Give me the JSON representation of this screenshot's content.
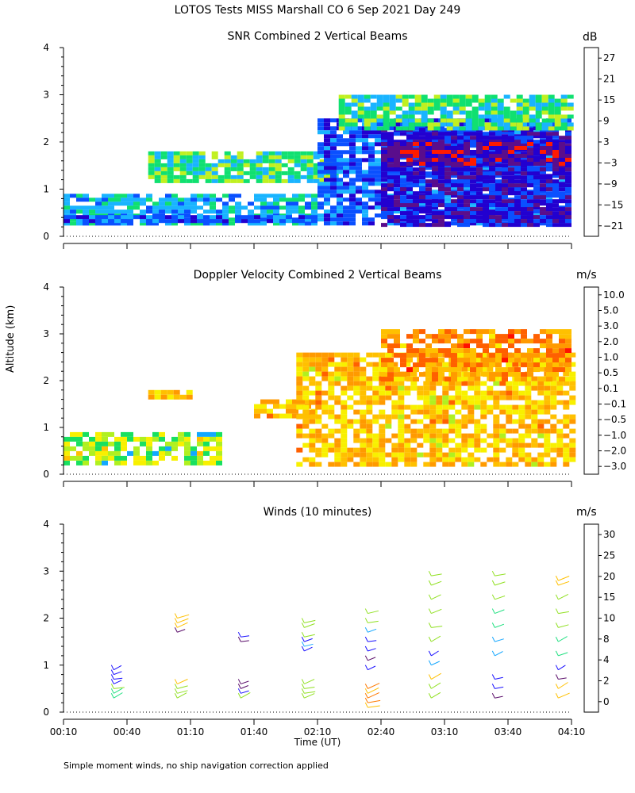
{
  "figure": {
    "title": "LOTOS Tests MISS Marshall CO    6 Sep 2021 Day 249",
    "ylabel": "Altitude (km)",
    "xlabel": "Time (UT)",
    "footnote": "Simple moment winds, no ship navigation correction applied",
    "x_ticks": [
      "00:10",
      "00:40",
      "01:10",
      "01:40",
      "02:10",
      "02:40",
      "03:10",
      "03:40",
      "04:10"
    ],
    "y_ticks": [
      "0",
      "1",
      "2",
      "3",
      "4"
    ]
  },
  "chart_data": [
    {
      "type": "heatmap",
      "title": "SNR Combined 2 Vertical Beams",
      "unit": "dB",
      "xlim": [
        "00:10",
        "04:10"
      ],
      "ylim": [
        0,
        4
      ],
      "colorbar": {
        "labels": [
          "27",
          "21",
          "15",
          "9",
          "3",
          "−3",
          "−9",
          "−15",
          "−21"
        ],
        "colors": [
          "#ffd700",
          "#ff9000",
          "#ff1a00",
          "#5a0d8c",
          "#2200d0",
          "#0a50ff",
          "#19b4ff",
          "#10e070",
          "#c0f020"
        ]
      },
      "regions": [
        {
          "t_start": "00:10",
          "t_end": "02:10",
          "alt_min": 0.25,
          "alt_max": 0.9,
          "snr_db": -12
        },
        {
          "t_start": "00:10",
          "t_end": "02:10",
          "alt_min": 0.3,
          "alt_max": 0.45,
          "snr_db": -6
        },
        {
          "t_start": "00:50",
          "t_end": "02:20",
          "alt_min": 1.2,
          "alt_max": 1.8,
          "snr_db": -18
        },
        {
          "t_start": "02:10",
          "t_end": "04:10",
          "alt_min": 0.25,
          "alt_max": 2.5,
          "snr_db": -6
        },
        {
          "t_start": "02:40",
          "t_end": "04:10",
          "alt_min": 0.25,
          "alt_max": 2.3,
          "snr_db": 0
        },
        {
          "t_start": "02:40",
          "t_end": "04:10",
          "alt_min": 1.5,
          "alt_max": 2.0,
          "snr_db": 8
        },
        {
          "t_start": "02:20",
          "t_end": "04:10",
          "alt_min": 2.3,
          "alt_max": 3.0,
          "snr_db": -18
        }
      ]
    },
    {
      "type": "heatmap",
      "title": "Doppler Velocity Combined 2 Vertical Beams",
      "unit": "m/s",
      "xlim": [
        "00:10",
        "04:10"
      ],
      "ylim": [
        0,
        4
      ],
      "colorbar": {
        "labels": [
          "10.0",
          "5.0",
          "3.0",
          "2.0",
          "1.0",
          "0.5",
          "0.1",
          "−0.1",
          "−0.5",
          "−1.0",
          "−2.0",
          "−3.0"
        ],
        "colors": [
          "#3a0a2e",
          "#5a0d8c",
          "#2a00c8",
          "#0a40ff",
          "#12a8ff",
          "#18e060",
          "#b0f020",
          "#f8f000",
          "#ffc000",
          "#ff9a00",
          "#ff6000",
          "#ff1000"
        ]
      },
      "regions": [
        {
          "t_start": "00:10",
          "t_end": "01:25",
          "alt_min": 0.25,
          "alt_max": 0.9,
          "velocity_ms": 0.0
        },
        {
          "t_start": "00:50",
          "t_end": "01:10",
          "alt_min": 1.6,
          "alt_max": 1.8,
          "velocity_ms": -0.5
        },
        {
          "t_start": "01:40",
          "t_end": "02:10",
          "alt_min": 1.2,
          "alt_max": 1.6,
          "velocity_ms": -0.5
        },
        {
          "t_start": "02:00",
          "t_end": "04:10",
          "alt_min": 0.25,
          "alt_max": 2.6,
          "velocity_ms": -0.5
        },
        {
          "t_start": "02:40",
          "t_end": "04:10",
          "alt_min": 2.0,
          "alt_max": 3.1,
          "velocity_ms": -0.8
        }
      ]
    },
    {
      "type": "scatter",
      "title": "Winds (10 minutes)",
      "unit": "m/s",
      "xlim": [
        "00:10",
        "04:10"
      ],
      "ylim": [
        0,
        4
      ],
      "colorbar": {
        "labels": [
          "30",
          "25",
          "20",
          "15",
          "10",
          "8",
          "4",
          "2",
          "0"
        ],
        "colors": [
          "#ff1a00",
          "#ff7a00",
          "#ffc000",
          "#90e020",
          "#20e080",
          "#18a8ff",
          "#1a10ff",
          "#5a0d6a",
          "#000000"
        ]
      },
      "profiles": [
        {
          "time": "00:30",
          "points": [
            [
              0.3,
              12
            ],
            [
              0.4,
              10
            ],
            [
              0.5,
              14
            ],
            [
              0.6,
              3
            ],
            [
              0.7,
              4
            ],
            [
              0.8,
              3
            ],
            [
              0.9,
              4
            ]
          ]
        },
        {
          "time": "01:00",
          "points": [
            [
              0.3,
              14
            ],
            [
              0.4,
              14
            ],
            [
              0.5,
              15
            ],
            [
              0.6,
              18
            ],
            [
              1.7,
              2
            ],
            [
              1.8,
              18
            ],
            [
              1.9,
              20
            ],
            [
              2.0,
              22
            ]
          ]
        },
        {
          "time": "01:30",
          "points": [
            [
              0.3,
              15
            ],
            [
              0.4,
              3
            ],
            [
              0.5,
              1
            ],
            [
              0.6,
              2
            ],
            [
              1.5,
              2
            ],
            [
              1.6,
              3
            ]
          ]
        },
        {
          "time": "02:00",
          "points": [
            [
              0.3,
              16
            ],
            [
              0.4,
              16
            ],
            [
              0.5,
              13
            ],
            [
              0.6,
              16
            ],
            [
              1.3,
              5
            ],
            [
              1.4,
              6
            ],
            [
              1.5,
              4
            ],
            [
              1.6,
              15
            ],
            [
              1.8,
              16
            ],
            [
              1.9,
              17
            ]
          ]
        },
        {
          "time": "02:30",
          "points": [
            [
              0.1,
              22
            ],
            [
              0.2,
              24
            ],
            [
              0.3,
              24
            ],
            [
              0.4,
              22
            ],
            [
              0.5,
              25
            ],
            [
              0.9,
              3
            ],
            [
              1.1,
              2
            ],
            [
              1.3,
              3
            ],
            [
              1.5,
              4
            ],
            [
              1.7,
              6
            ],
            [
              1.9,
              14
            ],
            [
              2.1,
              16
            ]
          ]
        },
        {
          "time": "03:00",
          "points": [
            [
              0.3,
              14
            ],
            [
              0.5,
              15
            ],
            [
              0.7,
              18
            ],
            [
              1.0,
              6
            ],
            [
              1.2,
              4
            ],
            [
              1.5,
              14
            ],
            [
              1.8,
              16
            ],
            [
              2.1,
              16
            ],
            [
              2.4,
              14
            ],
            [
              2.7,
              15
            ],
            [
              2.9,
              14
            ]
          ]
        },
        {
          "time": "03:30",
          "points": [
            [
              0.3,
              2
            ],
            [
              0.5,
              4
            ],
            [
              0.7,
              3
            ],
            [
              1.2,
              6
            ],
            [
              1.5,
              8
            ],
            [
              1.8,
              9
            ],
            [
              2.1,
              12
            ],
            [
              2.4,
              14
            ],
            [
              2.7,
              15
            ],
            [
              2.9,
              15
            ]
          ]
        },
        {
          "time": "04:00",
          "points": [
            [
              0.3,
              22
            ],
            [
              0.5,
              18
            ],
            [
              0.7,
              2
            ],
            [
              0.9,
              3
            ],
            [
              1.2,
              10
            ],
            [
              1.5,
              12
            ],
            [
              1.8,
              14
            ],
            [
              2.1,
              15
            ],
            [
              2.4,
              16
            ],
            [
              2.7,
              18
            ],
            [
              2.8,
              20
            ]
          ]
        }
      ]
    }
  ]
}
